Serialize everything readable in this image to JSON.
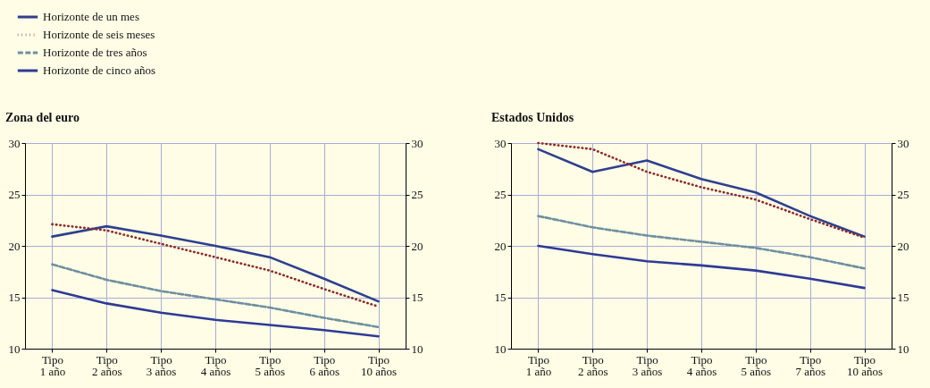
{
  "chart_data": [
    {
      "type": "line",
      "title": "Zona del euro",
      "categories": [
        "Tipo\n1 año",
        "Tipo\n2 años",
        "Tipo\n3 años",
        "Tipo\n4 años",
        "Tipo\n5 años",
        "Tipo\n6 años",
        "Tipo\n10 años"
      ],
      "series": [
        {
          "name": "Horizonte de un mes",
          "color": "#2e3f8f",
          "line_style": "solid",
          "values": [
            20.9,
            21.9,
            21.0,
            20.0,
            18.9,
            16.8,
            14.6
          ]
        },
        {
          "name": "Horizonte de seis meses",
          "color": "#8b2a2a",
          "line_style": "dotted",
          "values": [
            22.1,
            21.5,
            20.2,
            18.9,
            17.6,
            15.8,
            14.1
          ]
        },
        {
          "name": "Horizonte de tres años",
          "color": "#6e8fa0",
          "line_style": "dashed",
          "values": [
            18.2,
            16.7,
            15.6,
            14.8,
            14.0,
            13.0,
            12.1
          ]
        },
        {
          "name": "Horizonte de cinco años",
          "color": "#2e3a96",
          "line_style": "solid",
          "values": [
            15.7,
            14.4,
            13.5,
            12.8,
            12.3,
            11.8,
            11.2
          ]
        }
      ],
      "ylim": [
        10,
        30
      ],
      "yticks": [
        10,
        15,
        20,
        25,
        30
      ],
      "y2lim": [
        10,
        30
      ],
      "y2ticks": [
        10,
        15,
        20,
        25,
        30
      ],
      "grid": true,
      "legend": "top left"
    },
    {
      "type": "line",
      "title": "Estados Unidos",
      "categories": [
        "Tipo\n1 año",
        "Tipo\n2 años",
        "Tipo\n3 años",
        "Tipo\n4 años",
        "Tipo\n5 años",
        "Tipo\n7 años",
        "Tipo\n10 años"
      ],
      "series": [
        {
          "color": "#2e3f8f",
          "line_style": "solid",
          "values": [
            29.4,
            27.2,
            28.3,
            26.5,
            25.2,
            22.9,
            20.9
          ]
        },
        {
          "color": "#8b2a2a",
          "line_style": "dotted",
          "values": [
            30.0,
            29.4,
            27.2,
            25.7,
            24.5,
            22.6,
            20.8
          ]
        },
        {
          "color": "#6e8fa0",
          "line_style": "dashed",
          "values": [
            22.9,
            21.8,
            21.0,
            20.4,
            19.8,
            18.9,
            17.8
          ]
        },
        {
          "color": "#2e3a96",
          "line_style": "solid",
          "values": [
            20.0,
            19.2,
            18.5,
            18.1,
            17.6,
            16.8,
            15.9
          ]
        }
      ],
      "ylim": [
        10,
        30
      ],
      "yticks": [
        10,
        15,
        20,
        25,
        30
      ],
      "y2lim": [
        10,
        30
      ],
      "y2ticks": [
        10,
        15,
        20,
        25,
        30
      ],
      "grid": true
    }
  ]
}
